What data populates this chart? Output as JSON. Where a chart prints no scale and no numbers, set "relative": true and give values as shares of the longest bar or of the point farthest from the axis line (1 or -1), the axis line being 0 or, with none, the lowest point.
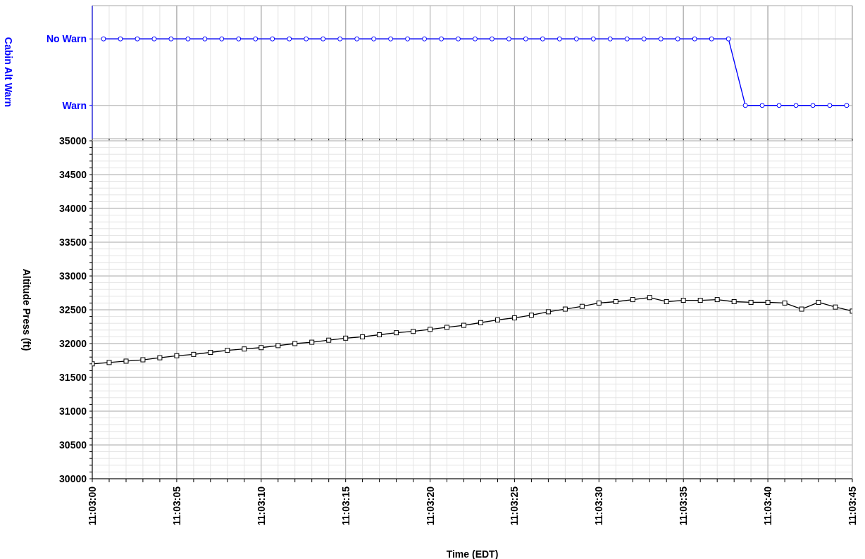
{
  "chart_data": [
    {
      "type": "line",
      "ylabel": "Cabin Alt Warn",
      "x": [
        11.050185,
        11.050463,
        11.050741,
        11.051018,
        11.051296,
        11.051574,
        11.051852,
        11.052129,
        11.052407,
        11.052685,
        11.052963,
        11.053241,
        11.053518,
        11.053796,
        11.054074,
        11.054352,
        11.054629,
        11.054907,
        11.055185,
        11.055463,
        11.055741,
        11.056018,
        11.056296,
        11.056574,
        11.056852,
        11.057129,
        11.057407,
        11.057685,
        11.057963,
        11.058241,
        11.058518,
        11.058796,
        11.059074,
        11.059352,
        11.059629,
        11.059907,
        11.060185,
        11.060463,
        11.060741,
        11.061018,
        11.061296,
        11.061574,
        11.061852,
        11.062129,
        11.062407
      ],
      "y_categories": [
        "No Warn",
        "Warn"
      ],
      "relative": true,
      "series": [
        {
          "color": "#0000ff",
          "values": [
            1,
            1,
            1,
            1,
            1,
            1,
            1,
            1,
            1,
            1,
            1,
            1,
            1,
            1,
            1,
            1,
            1,
            1,
            1,
            1,
            1,
            1,
            1,
            1,
            1,
            1,
            1,
            1,
            1,
            1,
            1,
            1,
            1,
            1,
            1,
            1,
            1,
            1,
            0,
            0,
            0,
            0,
            0,
            0,
            0
          ]
        }
      ],
      "xlim": [
        11.05,
        11.0625
      ],
      "xticks": [
        {
          "value": 11.05,
          "label": null
        },
        {
          "value": 11.050278,
          "label": null
        },
        {
          "value": 11.050556,
          "label": null
        },
        {
          "value": 11.050833,
          "label": null
        },
        {
          "value": 11.051111,
          "label": null
        },
        {
          "value": 11.051389,
          "label": null
        },
        {
          "value": 11.051667,
          "label": null
        },
        {
          "value": 11.051944,
          "label": null
        },
        {
          "value": 11.052222,
          "label": null
        },
        {
          "value": 11.0525,
          "label": null
        },
        {
          "value": 11.052778,
          "label": null
        },
        {
          "value": 11.053056,
          "label": null
        },
        {
          "value": 11.053333,
          "label": null
        },
        {
          "value": 11.053611,
          "label": null
        },
        {
          "value": 11.053889,
          "label": null
        },
        {
          "value": 11.054167,
          "label": null
        },
        {
          "value": 11.054444,
          "label": null
        },
        {
          "value": 11.054722,
          "label": null
        },
        {
          "value": 11.055,
          "label": null
        },
        {
          "value": 11.055278,
          "label": null
        },
        {
          "value": 11.055556,
          "label": null
        },
        {
          "value": 11.055833,
          "label": null
        },
        {
          "value": 11.056111,
          "label": null
        },
        {
          "value": 11.056389,
          "label": null
        },
        {
          "value": 11.056667,
          "label": null
        },
        {
          "value": 11.056944,
          "label": null
        },
        {
          "value": 11.057222,
          "label": null
        },
        {
          "value": 11.0575,
          "label": null
        },
        {
          "value": 11.057778,
          "label": null
        },
        {
          "value": 11.058056,
          "label": null
        },
        {
          "value": 11.058333,
          "label": null
        },
        {
          "value": 11.058611,
          "label": null
        },
        {
          "value": 11.058889,
          "label": null
        },
        {
          "value": 11.059167,
          "label": null
        },
        {
          "value": 11.059444,
          "label": null
        },
        {
          "value": 11.059722,
          "label": null
        },
        {
          "value": 11.06,
          "label": null
        },
        {
          "value": 11.060278,
          "label": null
        },
        {
          "value": 11.060556,
          "label": null
        },
        {
          "value": 11.060833,
          "label": null
        },
        {
          "value": 11.061111,
          "label": null
        },
        {
          "value": 11.061389,
          "label": null
        },
        {
          "value": 11.061667,
          "label": null
        },
        {
          "value": 11.061944,
          "label": null
        },
        {
          "value": 11.062222,
          "label": null
        },
        {
          "value": 11.0625,
          "label": null
        }
      ],
      "tick_labels": "y",
      "grid": true,
      "marker": "circle",
      "line_style": "solid"
    },
    {
      "type": "line",
      "xlabel": "Time (EDT)",
      "ylabel": "Altitude Press (ft)",
      "x": [
        11.05,
        11.050278,
        11.050556,
        11.050833,
        11.051111,
        11.051389,
        11.051667,
        11.051944,
        11.052222,
        11.0525,
        11.052778,
        11.053056,
        11.053333,
        11.053611,
        11.053889,
        11.054167,
        11.054444,
        11.054722,
        11.055,
        11.055278,
        11.055556,
        11.055833,
        11.056111,
        11.056389,
        11.056667,
        11.056944,
        11.057222,
        11.0575,
        11.057778,
        11.058056,
        11.058333,
        11.058611,
        11.058889,
        11.059167,
        11.059444,
        11.059722,
        11.06,
        11.060278,
        11.060556,
        11.060833,
        11.061111,
        11.061389,
        11.061667,
        11.061944,
        11.062222,
        11.0625
      ],
      "series": [
        {
          "color": "#000000",
          "values": [
            31700,
            31720,
            31740,
            31760,
            31790,
            31820,
            31840,
            31870,
            31900,
            31920,
            31940,
            31970,
            32000,
            32020,
            32050,
            32080,
            32100,
            32130,
            32160,
            32180,
            32210,
            32240,
            32270,
            32310,
            32350,
            32380,
            32420,
            32470,
            32510,
            32550,
            32600,
            32620,
            32650,
            32680,
            32620,
            32640,
            32640,
            32650,
            32620,
            32610,
            32610,
            32600,
            32510,
            32610,
            32540,
            32480
          ]
        }
      ],
      "xlim": [
        11.05,
        11.0625
      ],
      "xticks": [
        {
          "value": 11.05,
          "label": "11:03:00"
        },
        {
          "value": 11.050278,
          "label": null
        },
        {
          "value": 11.050556,
          "label": null
        },
        {
          "value": 11.050833,
          "label": null
        },
        {
          "value": 11.051111,
          "label": null
        },
        {
          "value": 11.051389,
          "label": "11:03:05"
        },
        {
          "value": 11.051667,
          "label": null
        },
        {
          "value": 11.051944,
          "label": null
        },
        {
          "value": 11.052222,
          "label": null
        },
        {
          "value": 11.0525,
          "label": null
        },
        {
          "value": 11.052778,
          "label": "11:03:10"
        },
        {
          "value": 11.053056,
          "label": null
        },
        {
          "value": 11.053333,
          "label": null
        },
        {
          "value": 11.053611,
          "label": null
        },
        {
          "value": 11.053889,
          "label": null
        },
        {
          "value": 11.054167,
          "label": "11:03:15"
        },
        {
          "value": 11.054444,
          "label": null
        },
        {
          "value": 11.054722,
          "label": null
        },
        {
          "value": 11.055,
          "label": null
        },
        {
          "value": 11.055278,
          "label": null
        },
        {
          "value": 11.055556,
          "label": "11:03:20"
        },
        {
          "value": 11.055833,
          "label": null
        },
        {
          "value": 11.056111,
          "label": null
        },
        {
          "value": 11.056389,
          "label": null
        },
        {
          "value": 11.056667,
          "label": null
        },
        {
          "value": 11.056944,
          "label": "11:03:25"
        },
        {
          "value": 11.057222,
          "label": null
        },
        {
          "value": 11.0575,
          "label": null
        },
        {
          "value": 11.057778,
          "label": null
        },
        {
          "value": 11.058056,
          "label": null
        },
        {
          "value": 11.058333,
          "label": "11:03:30"
        },
        {
          "value": 11.058611,
          "label": null
        },
        {
          "value": 11.058889,
          "label": null
        },
        {
          "value": 11.059167,
          "label": null
        },
        {
          "value": 11.059444,
          "label": null
        },
        {
          "value": 11.059722,
          "label": "11:03:35"
        },
        {
          "value": 11.06,
          "label": null
        },
        {
          "value": 11.060278,
          "label": null
        },
        {
          "value": 11.060556,
          "label": null
        },
        {
          "value": 11.060833,
          "label": null
        },
        {
          "value": 11.061111,
          "label": "11:03:40"
        },
        {
          "value": 11.061389,
          "label": null
        },
        {
          "value": 11.061667,
          "label": null
        },
        {
          "value": 11.061944,
          "label": null
        },
        {
          "value": 11.062222,
          "label": null
        },
        {
          "value": 11.0625,
          "label": "11:03:45"
        }
      ],
      "ylim": [
        30000,
        35000
      ],
      "yticks": [
        30000,
        {
          "value": 30100,
          "label": null
        },
        {
          "value": 30200,
          "label": null
        },
        {
          "value": 30300,
          "label": null
        },
        {
          "value": 30400,
          "label": null
        },
        30500,
        {
          "value": 30600,
          "label": null
        },
        {
          "value": 30700,
          "label": null
        },
        {
          "value": 30800,
          "label": null
        },
        {
          "value": 30900,
          "label": null
        },
        31000,
        {
          "value": 31100,
          "label": null
        },
        {
          "value": 31200,
          "label": null
        },
        {
          "value": 31300,
          "label": null
        },
        {
          "value": 31400,
          "label": null
        },
        31500,
        {
          "value": 31600,
          "label": null
        },
        {
          "value": 31700,
          "label": null
        },
        {
          "value": 31800,
          "label": null
        },
        {
          "value": 31900,
          "label": null
        },
        32000,
        {
          "value": 32100,
          "label": null
        },
        {
          "value": 32200,
          "label": null
        },
        {
          "value": 32300,
          "label": null
        },
        {
          "value": 32400,
          "label": null
        },
        32500,
        {
          "value": 32600,
          "label": null
        },
        {
          "value": 32700,
          "label": null
        },
        {
          "value": 32800,
          "label": null
        },
        {
          "value": 32900,
          "label": null
        },
        33000,
        {
          "value": 33100,
          "label": null
        },
        {
          "value": 33200,
          "label": null
        },
        {
          "value": 33300,
          "label": null
        },
        {
          "value": 33400,
          "label": null
        },
        33500,
        {
          "value": 33600,
          "label": null
        },
        {
          "value": 33700,
          "label": null
        },
        {
          "value": 33800,
          "label": null
        },
        {
          "value": 33900,
          "label": null
        },
        34000,
        {
          "value": 34100,
          "label": null
        },
        {
          "value": 34200,
          "label": null
        },
        {
          "value": 34300,
          "label": null
        },
        {
          "value": 34400,
          "label": null
        },
        34500,
        {
          "value": 34600,
          "label": null
        },
        {
          "value": 34700,
          "label": null
        },
        {
          "value": 34800,
          "label": null
        },
        {
          "value": 34900,
          "label": null
        },
        35000
      ],
      "grid": true,
      "marker": "square",
      "line_style": "solid"
    }
  ]
}
